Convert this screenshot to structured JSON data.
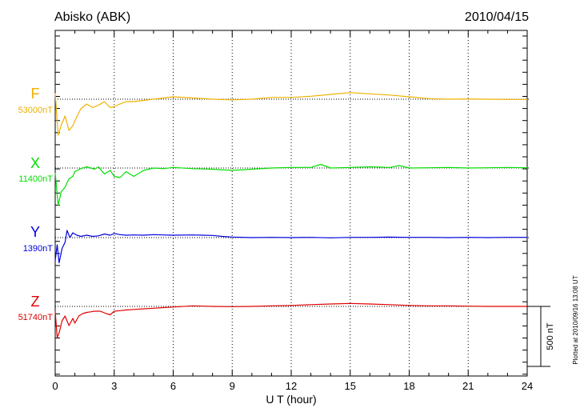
{
  "header": {
    "station": "Abisko (ABK)",
    "date": "2010/04/15"
  },
  "footnote": "Plotted at 2010/09/16 13:08 UT",
  "chart_data": {
    "type": "line",
    "xlabel": "U T (hour)",
    "xlim": [
      0,
      24
    ],
    "xticks": [
      "0",
      "3",
      "6",
      "9",
      "12",
      "15",
      "18",
      "21",
      "24"
    ],
    "grid": true,
    "scale_bar_label": "500 nT",
    "scale_bar_nT": 500,
    "series": [
      {
        "name": "F",
        "baseline_label": "53000nT",
        "baseline_nT": 53000,
        "color": "#f0b000",
        "x": [
          0,
          0.15,
          0.3,
          0.5,
          0.7,
          0.9,
          1.0,
          1.3,
          1.6,
          1.9,
          2.2,
          2.5,
          2.8,
          3.0,
          3.3,
          3.6,
          4.0,
          4.5,
          5.0,
          5.5,
          6.0,
          7.0,
          8.0,
          9.0,
          10.0,
          11.0,
          12.0,
          13.0,
          14.0,
          15.0,
          16.0,
          17.0,
          18.0,
          19.0,
          20.0,
          21.0,
          22.0,
          23.0,
          24.0
        ],
        "y": [
          53050,
          52700,
          52780,
          52860,
          52740,
          52780,
          52820,
          52920,
          52960,
          52930,
          52950,
          52980,
          52930,
          52940,
          52960,
          52980,
          52980,
          52990,
          53000,
          53010,
          53020,
          53010,
          53000,
          52995,
          53000,
          53015,
          53015,
          53025,
          53040,
          53055,
          53045,
          53035,
          53020,
          53005,
          53000,
          53002,
          53000,
          52998,
          52998
        ]
      },
      {
        "name": "X",
        "baseline_label": "11400nT",
        "baseline_nT": 11400,
        "color": "#00e000",
        "x": [
          0,
          0.15,
          0.3,
          0.5,
          0.7,
          0.9,
          1.0,
          1.3,
          1.6,
          1.8,
          2.0,
          2.2,
          2.5,
          2.8,
          3.0,
          3.3,
          3.6,
          4.0,
          4.5,
          5.0,
          5.5,
          6.0,
          7.0,
          8.0,
          9.0,
          10.0,
          11.0,
          12.0,
          13.0,
          13.5,
          14.0,
          15.0,
          16.0,
          17.0,
          17.5,
          18.0,
          19.0,
          20.0,
          21.0,
          22.0,
          23.0,
          24.0
        ],
        "y": [
          11360,
          11090,
          11200,
          11240,
          11310,
          11330,
          11370,
          11395,
          11410,
          11400,
          11390,
          11410,
          11350,
          11380,
          11330,
          11320,
          11370,
          11330,
          11380,
          11400,
          11395,
          11405,
          11395,
          11390,
          11380,
          11390,
          11400,
          11405,
          11405,
          11430,
          11400,
          11405,
          11410,
          11405,
          11420,
          11400,
          11402,
          11405,
          11400,
          11402,
          11405,
          11402
        ]
      },
      {
        "name": "Y",
        "baseline_label": "1390nT",
        "baseline_nT": 1390,
        "color": "#0000e0",
        "x": [
          0,
          0.1,
          0.2,
          0.35,
          0.5,
          0.6,
          0.75,
          0.9,
          1.1,
          1.3,
          1.6,
          1.9,
          2.2,
          2.5,
          2.8,
          3.0,
          3.3,
          3.6,
          4.0,
          4.5,
          5.0,
          5.5,
          6.0,
          7.0,
          7.5,
          8.0,
          8.5,
          9.0,
          10.0,
          11.0,
          12.0,
          13.0,
          14.0,
          15.0,
          16.0,
          17.0,
          18.0,
          19.0,
          20.0,
          21.0,
          22.0,
          23.0,
          24.0
        ],
        "y": [
          1200,
          1330,
          1180,
          1300,
          1350,
          1450,
          1390,
          1430,
          1410,
          1400,
          1410,
          1400,
          1405,
          1420,
          1410,
          1425,
          1415,
          1410,
          1412,
          1410,
          1415,
          1412,
          1410,
          1412,
          1410,
          1408,
          1400,
          1395,
          1390,
          1392,
          1390,
          1392,
          1388,
          1392,
          1392,
          1394,
          1392,
          1392,
          1390,
          1392,
          1390,
          1392,
          1392
        ]
      },
      {
        "name": "Z",
        "baseline_label": "51740nT",
        "baseline_nT": 51740,
        "color": "#e00000",
        "x": [
          0,
          0.1,
          0.2,
          0.35,
          0.5,
          0.7,
          0.9,
          1.0,
          1.2,
          1.4,
          1.6,
          1.8,
          2.0,
          2.3,
          2.6,
          2.8,
          3.0,
          3.3,
          3.6,
          4.0,
          4.5,
          5.0,
          5.5,
          6.0,
          7.0,
          8.0,
          9.0,
          10.0,
          11.0,
          12.0,
          13.0,
          14.0,
          15.0,
          16.0,
          17.0,
          18.0,
          19.0,
          20.0,
          21.0,
          22.0,
          23.0,
          24.0
        ],
        "y": [
          51700,
          51480,
          51520,
          51620,
          51660,
          51580,
          51640,
          51600,
          51660,
          51680,
          51690,
          51695,
          51700,
          51700,
          51680,
          51670,
          51700,
          51705,
          51710,
          51715,
          51720,
          51725,
          51730,
          51735,
          51745,
          51740,
          51738,
          51740,
          51745,
          51748,
          51755,
          51760,
          51765,
          51760,
          51755,
          51748,
          51745,
          51745,
          51742,
          51740,
          51740,
          51740
        ]
      }
    ]
  }
}
